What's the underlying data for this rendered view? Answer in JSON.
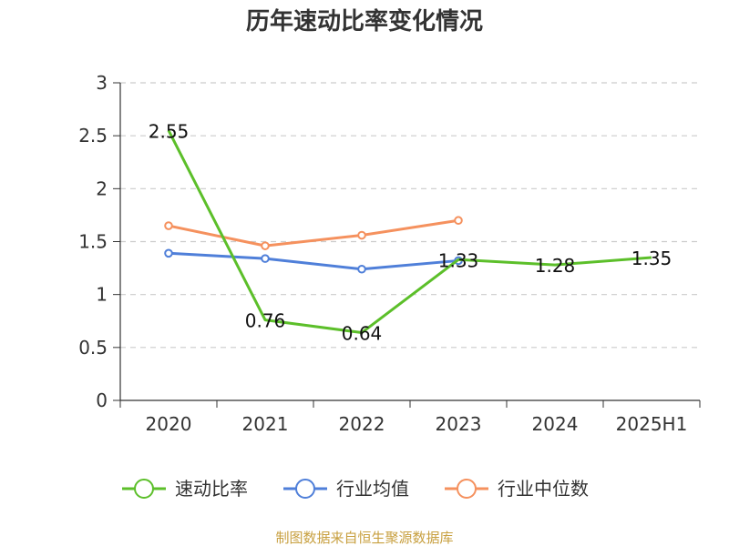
{
  "chart_data": {
    "type": "line",
    "title": "历年速动比率变化情况",
    "categories": [
      "2020",
      "2021",
      "2022",
      "2023",
      "2024",
      "2025H1"
    ],
    "ylim": [
      0,
      3
    ],
    "yticks": [
      0,
      0.5,
      1,
      1.5,
      2,
      2.5,
      3
    ],
    "ytick_labels": [
      "0",
      "0.5",
      "1",
      "1.5",
      "2",
      "2.5",
      "3"
    ],
    "grid": true,
    "legend_position": "bottom",
    "series": [
      {
        "name": "速动比率",
        "color": "#5cbf2a",
        "values": [
          2.55,
          0.76,
          0.64,
          1.33,
          1.28,
          1.35
        ],
        "labels": [
          "2.55",
          "0.76",
          "0.64",
          "1.33",
          "1.28",
          "1.35"
        ],
        "markers": false
      },
      {
        "name": "行业均值",
        "color": "#4f7fd9",
        "values": [
          1.39,
          1.34,
          1.24,
          1.32,
          null,
          null
        ],
        "markers": true
      },
      {
        "name": "行业中位数",
        "color": "#f5915e",
        "values": [
          1.65,
          1.46,
          1.56,
          1.7,
          null,
          null
        ],
        "markers": true
      }
    ]
  },
  "source_text": "制图数据来自恒生聚源数据库",
  "source_color": "#c8a040",
  "axis_color": "#333333",
  "grid_color": "#cccccc"
}
